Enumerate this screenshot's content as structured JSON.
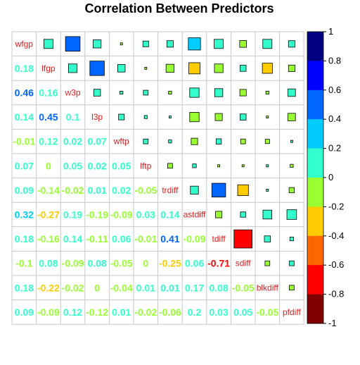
{
  "chart_data": {
    "type": "heatmap",
    "title": "Correlation Between Predictors",
    "variables": [
      "wfgp",
      "lfgp",
      "w3p",
      "l3p",
      "wftp",
      "lftp",
      "trdiff",
      "astdiff",
      "tdiff",
      "sdiff",
      "blkdiff",
      "pfdiff"
    ],
    "matrix": [
      [
        1,
        0.18,
        0.46,
        0.14,
        -0.01,
        0.07,
        0.09,
        0.32,
        0.18,
        -0.1,
        0.18,
        0.09
      ],
      [
        0.18,
        1,
        0.16,
        0.45,
        0.12,
        0,
        -0.14,
        -0.27,
        -0.16,
        0.08,
        -0.22,
        -0.09
      ],
      [
        0.46,
        0.16,
        1,
        0.1,
        0.02,
        0.05,
        -0.02,
        0.19,
        0.14,
        -0.09,
        -0.02,
        0.12
      ],
      [
        0.14,
        0.45,
        0.1,
        1,
        0.07,
        0.02,
        0.01,
        -0.19,
        -0.11,
        0.08,
        0,
        -0.12
      ],
      [
        -0.01,
        0.12,
        0.02,
        0.07,
        1,
        0.05,
        0.02,
        -0.09,
        0.06,
        -0.05,
        -0.04,
        0.01
      ],
      [
        0.07,
        0,
        0.05,
        0.02,
        0.05,
        1,
        -0.05,
        0.03,
        -0.01,
        0,
        0.01,
        -0.02
      ],
      [
        0.09,
        -0.14,
        -0.02,
        0.01,
        0.02,
        -0.05,
        1,
        0.14,
        0.41,
        -0.25,
        0.01,
        -0.06
      ],
      [
        0.32,
        -0.27,
        0.19,
        -0.19,
        -0.09,
        0.03,
        0.14,
        1,
        -0.09,
        0.06,
        0.17,
        0.2
      ],
      [
        0.18,
        -0.16,
        0.14,
        -0.11,
        0.06,
        -0.01,
        0.41,
        -0.09,
        1,
        -0.71,
        0.08,
        0.03
      ],
      [
        -0.1,
        0.08,
        -0.09,
        0.08,
        -0.05,
        0,
        -0.25,
        0.06,
        -0.71,
        1,
        -0.05,
        0.05
      ],
      [
        0.18,
        -0.22,
        -0.02,
        0,
        -0.04,
        0.01,
        0.01,
        0.17,
        0.08,
        -0.05,
        1,
        -0.05
      ],
      [
        0.09,
        -0.09,
        0.12,
        -0.12,
        0.01,
        -0.02,
        -0.06,
        0.2,
        0.03,
        0.05,
        -0.05,
        1
      ]
    ],
    "lower_triangle_labels": {
      "0,1": "0.18",
      "0,2": "0.46",
      "0,3": "0.14",
      "0,4": "-0.01",
      "0,5": "0.07",
      "0,6": "0.09",
      "0,7": "0.32",
      "0,8": "0.18",
      "0,9": "-0.1",
      "0,10": "0.18",
      "0,11": "0.09",
      "1,2": "0.16",
      "1,3": "0.45",
      "1,4": "0.12",
      "1,5": "0",
      "1,6": "-0.14",
      "1,7": "-0.27",
      "1,8": "-0.16",
      "1,9": "0.08",
      "1,10": "-0.22",
      "1,11": "-0.09",
      "2,3": "0.1",
      "2,4": "0.02",
      "2,5": "0.05",
      "2,6": "-0.02",
      "2,7": "0.19",
      "2,8": "0.14",
      "2,9": "-0.09",
      "2,10": "-0.02",
      "2,11": "0.12",
      "3,4": "0.07",
      "3,5": "0.02",
      "3,6": "0.01",
      "3,7": "-0.19",
      "3,8": "-0.11",
      "3,9": "0.08",
      "3,10": "0",
      "3,11": "-0.12",
      "4,5": "0.05",
      "4,6": "0.02",
      "4,7": "-0.09",
      "4,8": "0.06",
      "4,9": "-0.05",
      "4,10": "-0.04",
      "4,11": "0.01",
      "5,6": "-0.05",
      "5,7": "0.03",
      "5,8": "-0.01",
      "5,9": "0",
      "5,10": "0.01",
      "5,11": "-0.02",
      "6,7": "0.14",
      "6,8": "0.41",
      "6,9": "-0.25",
      "6,10": "0.01",
      "6,11": "-0.06",
      "7,8": "-0.09",
      "7,9": "0.06",
      "7,10": "0.17",
      "7,11": "0.2",
      "8,9": "-0.71",
      "8,10": "0.08",
      "8,11": "0.03",
      "9,10": "-0.05",
      "9,11": "0.05",
      "10,11": "-0.05"
    },
    "upper_triangle_style": "square",
    "lower_triangle_style": "number",
    "diagonal_style": "variable-name",
    "colorbar": {
      "range": [
        -1,
        1
      ],
      "ticks": [
        "1",
        "0.8",
        "0.6",
        "0.4",
        "0.2",
        "0",
        "-0.2",
        "-0.4",
        "-0.6",
        "-0.8",
        "-1"
      ],
      "colors": [
        "#000080",
        "#0000ff",
        "#0066ff",
        "#00ccff",
        "#33ffcc",
        "#99ff33",
        "#ffcc00",
        "#ff6600",
        "#ff0000",
        "#800000"
      ],
      "placement": "right"
    },
    "diag_label_color": "#e41a1c",
    "grid": true
  }
}
